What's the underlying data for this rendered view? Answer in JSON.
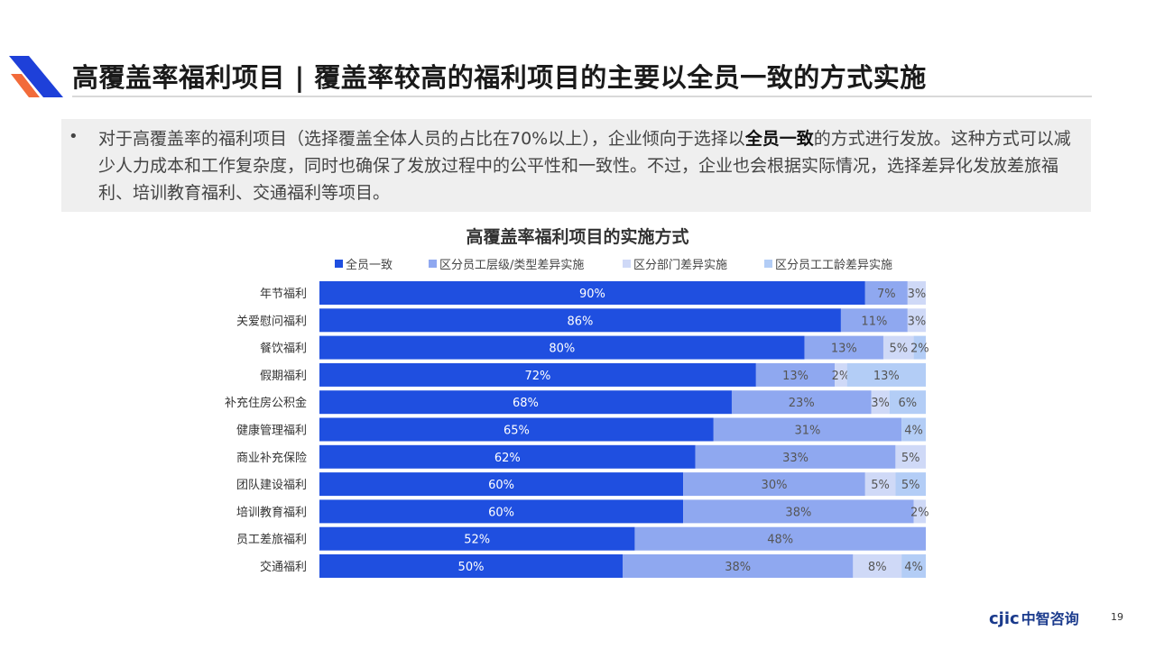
{
  "header": {
    "title": "高覆盖率福利项目 | 覆盖率较高的福利项目的主要以全员一致的方式实施"
  },
  "note": {
    "bullet": "•",
    "text_before": "对于高覆盖率的福利项目（选择覆盖全体人员的占比在70%以上），企业倾向于选择以",
    "text_bold": "全员一致",
    "text_after": "的方式进行发放。这种方式可以减少人力成本和工作复杂度，同时也确保了发放过程中的公平性和一致性。不过，企业也会根据实际情况，选择差异化发放差旅福利、培训教育福利、交通福利等项目。"
  },
  "footer": {
    "brand_mark": "cjic",
    "brand_name": "中智咨询",
    "page_number": "19"
  },
  "colors": {
    "series": [
      "#1f4fe0",
      "#8fa8f0",
      "#cfd9f7",
      "#b3cdf6"
    ],
    "accent_dark": "#1e40d9",
    "accent_orange": "#f26b3a"
  },
  "chart_data": {
    "type": "bar",
    "orientation": "horizontal",
    "stacked": true,
    "percent_stacked": true,
    "title": "高覆盖率福利项目的实施方式",
    "legend_position": "top",
    "categories": [
      "年节福利",
      "关爱慰问福利",
      "餐饮福利",
      "假期福利",
      "补充住房公积金",
      "健康管理福利",
      "商业补充保险",
      "团队建设福利",
      "培训教育福利",
      "员工差旅福利",
      "交通福利"
    ],
    "series": [
      {
        "name": "全员一致",
        "values": [
          90,
          86,
          80,
          72,
          68,
          65,
          62,
          60,
          60,
          52,
          50
        ]
      },
      {
        "name": "区分员工层级/类型差异实施",
        "values": [
          7,
          11,
          13,
          13,
          23,
          31,
          33,
          30,
          38,
          48,
          38
        ]
      },
      {
        "name": "区分部门差异实施",
        "values": [
          3,
          3,
          5,
          2,
          3,
          null,
          5,
          5,
          2,
          null,
          8
        ]
      },
      {
        "name": "区分员工工龄差异实施",
        "values": [
          null,
          null,
          2,
          13,
          6,
          4,
          null,
          5,
          null,
          null,
          4
        ]
      }
    ],
    "value_labels": [
      [
        "90%",
        "7%",
        "3%",
        ""
      ],
      [
        "86%",
        "11%",
        "3%",
        ""
      ],
      [
        "80%",
        "13%",
        "5%",
        "2%"
      ],
      [
        "72%",
        "13%",
        "2%",
        "13%"
      ],
      [
        "68%",
        "23%",
        "3%",
        "6%"
      ],
      [
        "65%",
        "31%",
        "",
        "4%"
      ],
      [
        "62%",
        "33%",
        "5%",
        ""
      ],
      [
        "60%",
        "30%",
        "5%",
        "5%"
      ],
      [
        "60%",
        "38%",
        "2%",
        ""
      ],
      [
        "52%",
        "48%",
        "",
        ""
      ],
      [
        "50%",
        "38%",
        "8%",
        "4%"
      ]
    ],
    "xlim": [
      0,
      100
    ],
    "unit": "%",
    "grid": false
  }
}
